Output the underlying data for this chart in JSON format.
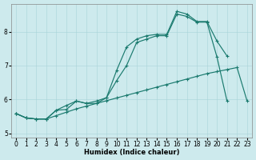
{
  "xlabel": "Humidex (Indice chaleur)",
  "bg_color": "#cdeaed",
  "grid_color": "#a8d4d8",
  "line_color": "#1a7a6e",
  "x": [
    0,
    1,
    2,
    3,
    4,
    5,
    6,
    7,
    8,
    9,
    10,
    11,
    12,
    13,
    14,
    15,
    16,
    17,
    18,
    19,
    20,
    21,
    22,
    23
  ],
  "curve_min": [
    5.58,
    5.45,
    5.42,
    5.42,
    5.52,
    5.62,
    5.72,
    5.8,
    5.88,
    5.96,
    6.04,
    6.12,
    6.2,
    6.28,
    6.36,
    6.44,
    6.52,
    6.6,
    6.68,
    6.76,
    6.82,
    6.88,
    6.94,
    5.95
  ],
  "curve_mid_x": [
    0,
    1,
    2,
    3,
    4,
    5,
    6,
    7,
    8,
    9,
    10,
    11,
    12,
    13,
    14,
    15,
    16,
    17,
    18,
    19,
    20,
    21
  ],
  "curve_mid_y": [
    5.58,
    5.45,
    5.42,
    5.42,
    5.68,
    5.7,
    5.95,
    5.88,
    5.95,
    6.05,
    6.55,
    7.0,
    7.68,
    7.78,
    7.88,
    7.88,
    8.52,
    8.45,
    8.28,
    8.28,
    7.25,
    5.95
  ],
  "curve_top_x": [
    0,
    1,
    2,
    3,
    4,
    5,
    6,
    7,
    8,
    9,
    10,
    11,
    12,
    13,
    14,
    15,
    16,
    17,
    18,
    19,
    20,
    21
  ],
  "curve_top_y": [
    5.58,
    5.45,
    5.42,
    5.42,
    5.68,
    5.82,
    5.95,
    5.88,
    5.88,
    6.05,
    6.85,
    7.55,
    7.78,
    7.88,
    7.92,
    7.92,
    8.6,
    8.52,
    8.3,
    8.3,
    7.72,
    7.28
  ],
  "ylim": [
    4.88,
    8.82
  ],
  "xlim": [
    -0.5,
    23.5
  ],
  "yticks": [
    5,
    6,
    7,
    8
  ],
  "xticks": [
    0,
    1,
    2,
    3,
    4,
    5,
    6,
    7,
    8,
    9,
    10,
    11,
    12,
    13,
    14,
    15,
    16,
    17,
    18,
    19,
    20,
    21,
    22,
    23
  ]
}
